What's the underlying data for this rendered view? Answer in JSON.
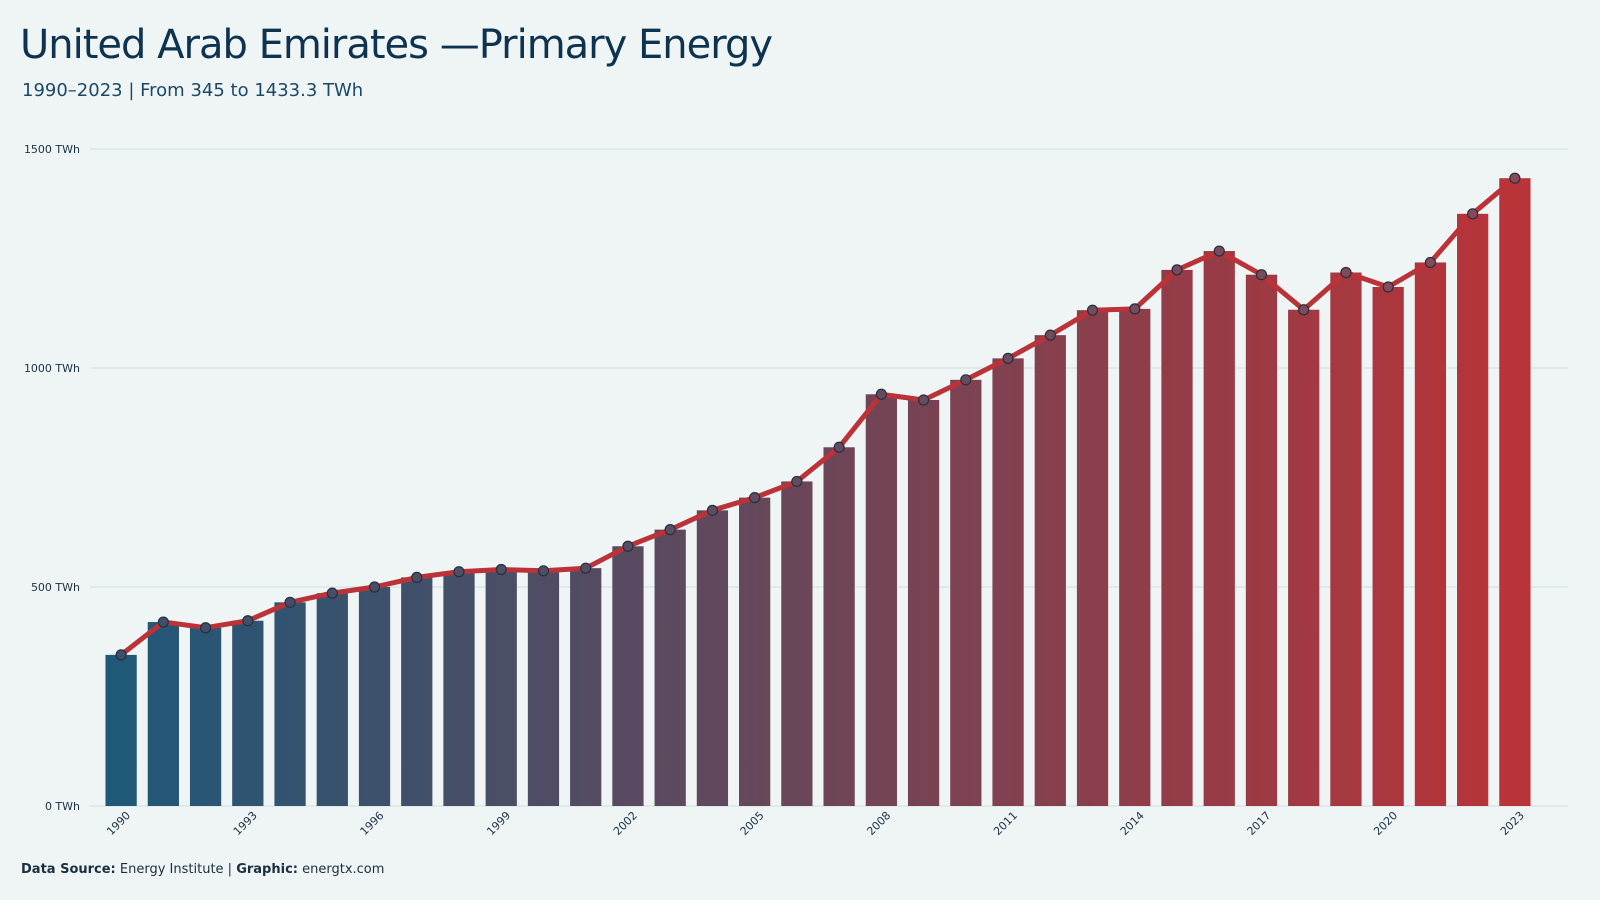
{
  "title": "United Arab Emirates —Primary Energy",
  "subtitle": "1990–2023 | From 345 to 1433.3  TWh",
  "footer": {
    "source_label": "Data Source:",
    "source_value": "Energy Institute |",
    "graphic_label": "Graphic:",
    "graphic_value": "energtx.com"
  },
  "colors": {
    "start": "#1e5878",
    "end": "#bb3338",
    "line": "#bb3338",
    "grid": "#d6e2e2",
    "background": "#eff5f5"
  },
  "chart_data": {
    "type": "bar",
    "x": [
      1990,
      1991,
      1992,
      1993,
      1994,
      1995,
      1996,
      1997,
      1998,
      1999,
      2000,
      2001,
      2002,
      2003,
      2004,
      2005,
      2006,
      2007,
      2008,
      2009,
      2010,
      2011,
      2012,
      2013,
      2014,
      2015,
      2016,
      2017,
      2018,
      2019,
      2020,
      2021,
      2022,
      2023
    ],
    "values": [
      345,
      420,
      407,
      423,
      465,
      486,
      500,
      522,
      535,
      540,
      537,
      543,
      593,
      631,
      675,
      704,
      741,
      819,
      940,
      927,
      973,
      1022,
      1075,
      1132,
      1135,
      1224,
      1267,
      1213,
      1133,
      1218,
      1185,
      1241,
      1352,
      1433.3
    ],
    "xticks": [
      1990,
      1993,
      1996,
      1999,
      2002,
      2005,
      2008,
      2011,
      2014,
      2017,
      2020,
      2023
    ],
    "yticks": [
      0,
      500,
      1000,
      1500
    ],
    "ytick_labels": [
      "0 TWh",
      "500 TWh",
      "1000 TWh",
      "1500 TWh"
    ],
    "ylim": [
      0,
      1500
    ],
    "overlay": "line-with-markers",
    "grid": true
  }
}
